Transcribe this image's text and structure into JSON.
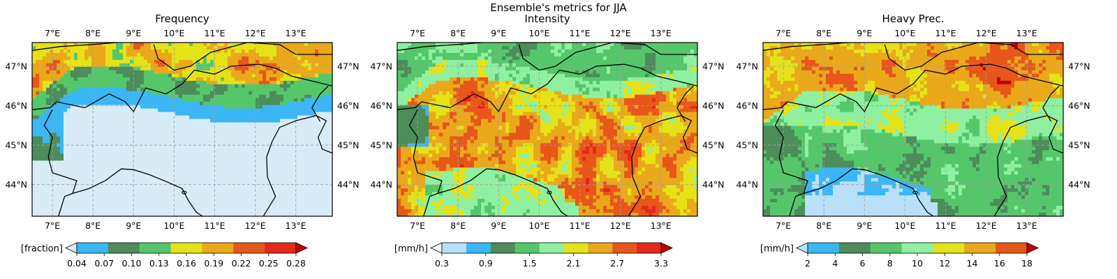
{
  "suptitle": "Ensemble's metrics for JJA",
  "colors": {
    "land_low": "#d8ecf8",
    "grid": "#a0a0a0",
    "border": "#000000"
  },
  "chart_data": [
    {
      "type": "heatmap",
      "title": "Frequency",
      "xlim": [
        6.5,
        13.9
      ],
      "ylim": [
        43.2,
        47.6
      ],
      "x_ticks": [
        "7°E",
        "8°E",
        "9°E",
        "10°E",
        "11°E",
        "12°E",
        "13°E"
      ],
      "y_ticks": [
        "44°N",
        "45°N",
        "46°N",
        "47°N"
      ],
      "grid": true,
      "colorbar": {
        "label": "[fraction]",
        "ticks": [
          "0.04",
          "0.07",
          "0.10",
          "0.13",
          "0.16",
          "0.19",
          "0.22",
          "0.25",
          "0.28"
        ],
        "colors": [
          "#d8ecf8",
          "#3bb7f6",
          "#4c8d5a",
          "#55c76a",
          "#e5e21a",
          "#e9a91b",
          "#e8571a",
          "#e62818",
          "#c40000"
        ]
      }
    },
    {
      "type": "heatmap",
      "title": "Intensity",
      "xlim": [
        6.5,
        13.9
      ],
      "ylim": [
        43.2,
        47.6
      ],
      "x_ticks": [
        "7°E",
        "8°E",
        "9°E",
        "10°E",
        "11°E",
        "12°E",
        "13°E"
      ],
      "y_ticks": [
        "44°N",
        "45°N",
        "46°N",
        "47°N"
      ],
      "grid": true,
      "colorbar": {
        "label": "[mm/h]",
        "ticks": [
          "0.3",
          "0.9",
          "1.5",
          "2.1",
          "2.7",
          "3.3"
        ],
        "colors": [
          "#f0f8ff",
          "#b8e0f8",
          "#3bb7f6",
          "#4c8d5a",
          "#55c76a",
          "#8ef0a0",
          "#e5e21a",
          "#e9a91b",
          "#e8571a",
          "#e62818",
          "#c40000"
        ]
      }
    },
    {
      "type": "heatmap",
      "title": "Heavy Prec.",
      "xlim": [
        6.5,
        13.9
      ],
      "ylim": [
        43.2,
        47.6
      ],
      "x_ticks": [
        "7°E",
        "8°E",
        "9°E",
        "10°E",
        "11°E",
        "12°E",
        "13°E"
      ],
      "y_ticks": [
        "44°N",
        "45°N",
        "46°N",
        "47°N"
      ],
      "grid": true,
      "colorbar": {
        "label": "[mm/h]",
        "ticks": [
          "2",
          "4",
          "6",
          "8",
          "10",
          "12",
          "14",
          "16",
          "18"
        ],
        "colors": [
          "#b8e0f8",
          "#3bb7f6",
          "#4c8d5a",
          "#55c76a",
          "#8ef0a0",
          "#e5e21a",
          "#e9a91b",
          "#e8571a",
          "#c40000"
        ]
      }
    }
  ]
}
